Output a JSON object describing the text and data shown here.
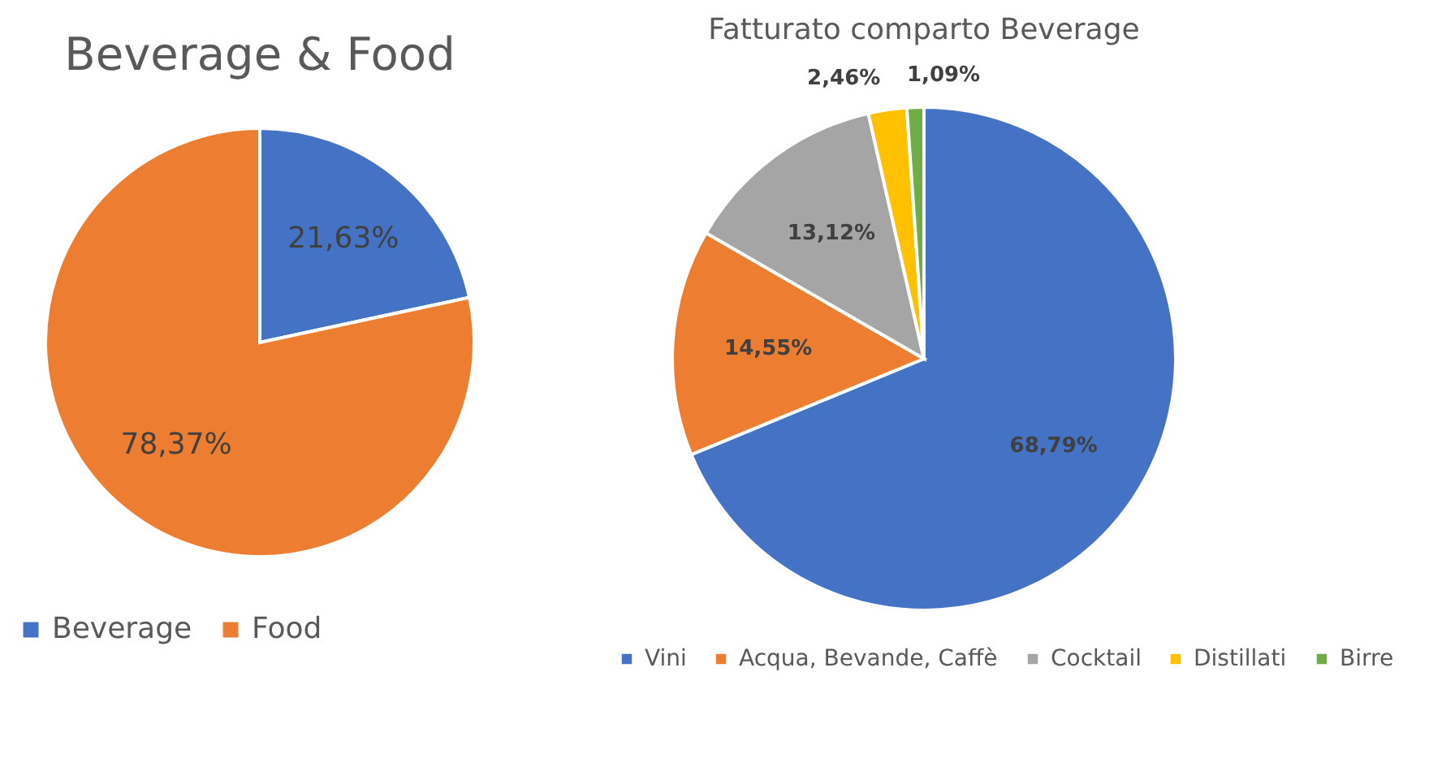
{
  "chart_data": [
    {
      "type": "pie",
      "title": "Beverage & Food",
      "categories": [
        "Beverage",
        "Food"
      ],
      "values": [
        21.63,
        78.37
      ],
      "colors": [
        "#4472c4",
        "#ed7d31"
      ],
      "value_labels": [
        "21,63%",
        "78,37%"
      ],
      "legend": "bottom"
    },
    {
      "type": "pie",
      "title": "Fatturato comparto Beverage",
      "categories": [
        "Vini",
        "Acqua, Bevande, Caffè",
        "Cocktail",
        "Distillati",
        "Birre"
      ],
      "values": [
        68.79,
        14.55,
        13.12,
        2.46,
        1.09
      ],
      "colors": [
        "#4472c4",
        "#ed7d31",
        "#a5a5a5",
        "#ffc000",
        "#70ad47"
      ],
      "value_labels": [
        "68,79%",
        "14,55%",
        "13,12%",
        "2,46%",
        "1,09%"
      ],
      "legend": "bottom"
    }
  ]
}
